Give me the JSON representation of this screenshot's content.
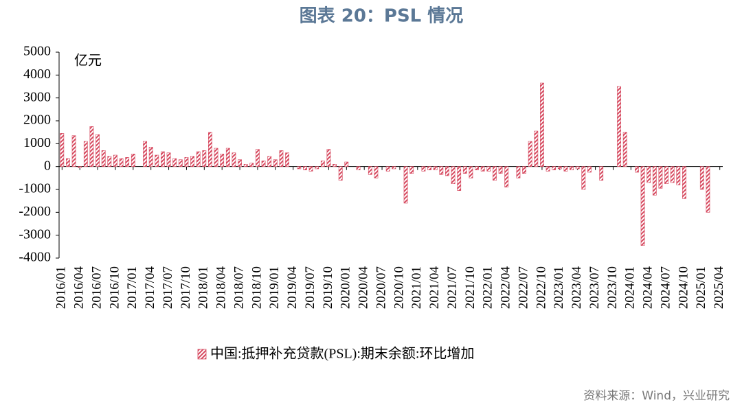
{
  "chart_data": {
    "type": "bar",
    "title": "图表 20：PSL 情况",
    "unit": "亿元",
    "source": "资料来源：Wind，兴业研究",
    "categories": [
      "2016/01",
      null,
      null,
      "2016/04",
      null,
      null,
      "2016/07",
      null,
      null,
      "2016/10",
      null,
      null,
      "2017/01",
      null,
      null,
      "2017/04",
      null,
      null,
      "2017/07",
      null,
      null,
      "2017/10",
      null,
      null,
      "2018/01",
      null,
      null,
      "2018/04",
      null,
      null,
      "2018/07",
      null,
      null,
      "2018/10",
      null,
      null,
      "2019/01",
      null,
      null,
      "2019/04",
      null,
      null,
      "2019/07",
      null,
      null,
      "2019/10",
      null,
      null,
      "2020/01",
      null,
      null,
      "2020/04",
      null,
      null,
      "2020/07",
      null,
      null,
      "2020/10",
      null,
      null,
      "2021/01",
      null,
      null,
      "2021/04",
      null,
      null,
      "2021/07",
      null,
      null,
      "2021/10",
      null,
      null,
      "2022/01",
      null,
      null,
      "2022/04",
      null,
      null,
      "2022/07",
      null,
      null,
      "2022/10",
      null,
      null,
      "2023/01",
      null,
      null,
      "2023/04",
      null,
      null,
      "2023/07",
      null,
      null,
      "2023/10",
      null,
      null,
      "2024/01",
      null,
      null,
      "2024/04",
      null,
      null,
      "2024/07",
      null,
      null,
      "2024/10",
      null,
      null,
      "2025/01",
      null,
      null,
      "2025/04"
    ],
    "series": [
      {
        "name": "中国:抵押补充贷款(PSL):期末余额:环比增加",
        "color": "#d6485e",
        "values": [
          1450,
          350,
          1350,
          -50,
          1100,
          1750,
          1400,
          700,
          450,
          500,
          350,
          400,
          550,
          0,
          1100,
          850,
          500,
          650,
          600,
          350,
          300,
          400,
          450,
          650,
          700,
          1500,
          800,
          550,
          800,
          600,
          300,
          100,
          150,
          750,
          250,
          450,
          300,
          700,
          600,
          0,
          -100,
          -150,
          -200,
          -100,
          250,
          750,
          100,
          -600,
          200,
          0,
          -150,
          0,
          -350,
          -500,
          0,
          -200,
          -100,
          0,
          -1600,
          -300,
          0,
          -200,
          -150,
          -150,
          -350,
          -400,
          -750,
          -1050,
          -300,
          -500,
          -150,
          -200,
          -200,
          -600,
          -300,
          -900,
          0,
          -500,
          -300,
          1100,
          1550,
          3650,
          -200,
          -150,
          -100,
          -200,
          -150,
          -100,
          -1000,
          -250,
          0,
          -600,
          0,
          0,
          3500,
          1500,
          0,
          -250,
          -3450,
          -700,
          -1250,
          -950,
          -750,
          -700,
          -800,
          -1400,
          0,
          0,
          -1000,
          -2000,
          null,
          null
        ]
      }
    ],
    "ylim": [
      -4000,
      5000
    ],
    "yticks": [
      -4000,
      -3000,
      -2000,
      -1000,
      0,
      1000,
      2000,
      3000,
      4000,
      5000
    ]
  }
}
